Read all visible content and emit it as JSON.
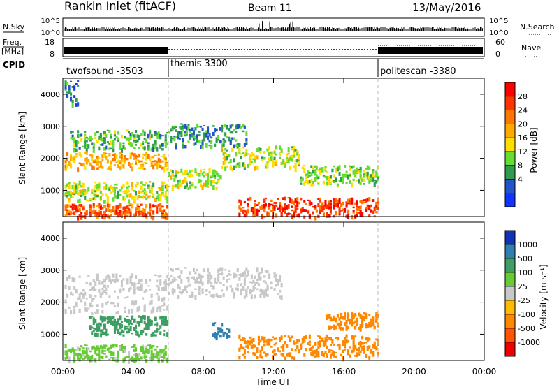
{
  "header": {
    "station": "Rankin Inlet (fitACF)",
    "beam": "Beam 11",
    "date": "13/May/2016"
  },
  "strips": {
    "nsky_label": "N.Sky",
    "nsky_ticks": [
      "10^5",
      "10^0"
    ],
    "nsearch_label": "N.Search",
    "freq_label_1": "Freq.",
    "freq_label_2": "[MHz]",
    "freq_ticks": [
      "18",
      "8"
    ],
    "nave_label": "Nave",
    "nave_ticks": [
      "60",
      "0"
    ],
    "cpid_label": "CPID"
  },
  "cpid": [
    {
      "name": "twofsound -3503",
      "start": 0,
      "end": 6
    },
    {
      "name": "themis 3300",
      "start": 6,
      "end": 18
    },
    {
      "name": "politescan -3380",
      "start": 18,
      "end": 24
    }
  ],
  "chart_data": {
    "type": "heatmap",
    "x_range_hours": [
      0,
      24
    ],
    "x_tick_hours": [
      0,
      4,
      8,
      12,
      16,
      20,
      24
    ],
    "x_tick_labels": [
      "00:00",
      "04:00",
      "08:00",
      "12:00",
      "16:00",
      "20:00",
      "00:00"
    ],
    "xlabel": "Time UT",
    "ylabel": "Slant Range [km]",
    "ylim": [
      180,
      4500
    ],
    "y_ticks": [
      1000,
      2000,
      3000,
      4000
    ],
    "power_colorbar": {
      "label": "Power [dB]",
      "ticks": [
        "28",
        "24",
        "20",
        "16",
        "12",
        "8",
        "4"
      ],
      "colors": [
        "#ff0000",
        "#ff3300",
        "#ff7700",
        "#ffaa00",
        "#ffdd00",
        "#66dd33",
        "#2f9c50",
        "#2255cc",
        "#1133ff"
      ]
    },
    "velocity_colorbar": {
      "label": "Velocity [m s⁻¹]",
      "ticks": [
        "1000",
        "500",
        "100",
        "25",
        "-25",
        "-100",
        "-500",
        "-1000"
      ],
      "colors": [
        "#1133bb",
        "#2f7fb0",
        "#3f9e63",
        "#66cc33",
        "#c8c8c8",
        "#ffbb00",
        "#ff8800",
        "#ff5500",
        "#ee0000"
      ]
    },
    "power_echo_regions": [
      {
        "t0": 0.1,
        "t1": 0.9,
        "r0": 3600,
        "r1": 4500,
        "value": 6
      },
      {
        "t0": 0.4,
        "t1": 6.0,
        "r0": 2300,
        "r1": 2900,
        "value": 10
      },
      {
        "t0": 0.1,
        "t1": 6.0,
        "r0": 1700,
        "r1": 2200,
        "value": 20
      },
      {
        "t0": 0.1,
        "t1": 6.0,
        "r0": 700,
        "r1": 1300,
        "value": 14
      },
      {
        "t0": 0.1,
        "t1": 6.0,
        "r0": 200,
        "r1": 600,
        "value": 26
      },
      {
        "t0": 6.0,
        "t1": 10.5,
        "r0": 2400,
        "r1": 3100,
        "value": 8
      },
      {
        "t0": 6.0,
        "t1": 9.0,
        "r0": 1100,
        "r1": 1700,
        "value": 14
      },
      {
        "t0": 9.0,
        "t1": 13.5,
        "r0": 1700,
        "r1": 2400,
        "value": 14
      },
      {
        "t0": 10.0,
        "t1": 18.0,
        "r0": 200,
        "r1": 800,
        "value": 28
      },
      {
        "t0": 13.5,
        "t1": 18.0,
        "r0": 1200,
        "r1": 1800,
        "value": 12
      }
    ],
    "velocity_echo_regions": [
      {
        "t0": 0.1,
        "t1": 6.0,
        "r0": 1700,
        "r1": 2900,
        "value": 0
      },
      {
        "t0": 6.0,
        "t1": 12.5,
        "r0": 2200,
        "r1": 3100,
        "value": 0
      },
      {
        "t0": 1.5,
        "t1": 6.0,
        "r0": 1000,
        "r1": 1600,
        "value": 150
      },
      {
        "t0": 0.1,
        "t1": 6.0,
        "r0": 200,
        "r1": 700,
        "value": 40
      },
      {
        "t0": 8.5,
        "t1": 9.5,
        "r0": 900,
        "r1": 1400,
        "value": 600
      },
      {
        "t0": 10.0,
        "t1": 18.0,
        "r0": 300,
        "r1": 1000,
        "value": -150
      },
      {
        "t0": 15.0,
        "t1": 18.0,
        "r0": 1200,
        "r1": 1700,
        "value": -400
      }
    ]
  }
}
